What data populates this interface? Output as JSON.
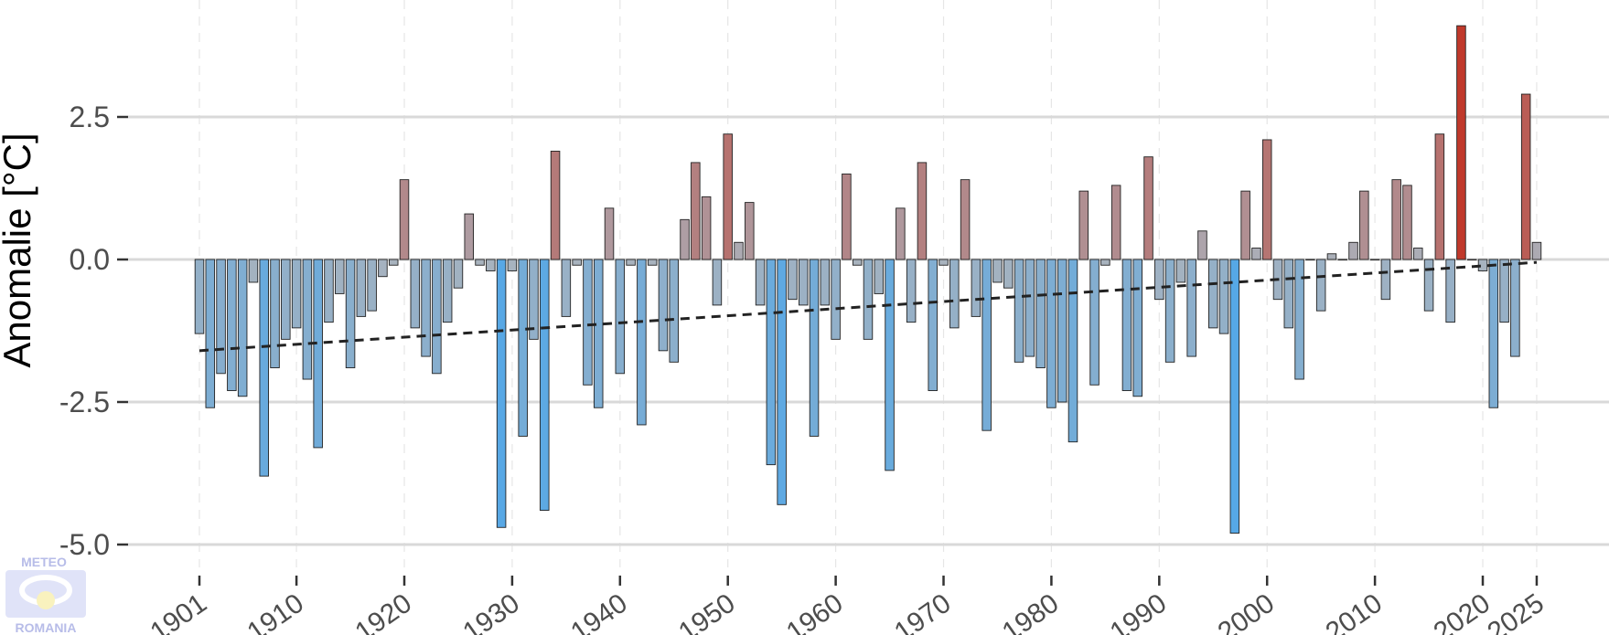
{
  "chart_data": {
    "type": "bar",
    "ylabel": "Anomalie [°C]",
    "xlabel": "",
    "ylim": [
      -5.4,
      4.5
    ],
    "xlim": [
      1900,
      2026.5
    ],
    "yticks": [
      2.5,
      0.0,
      -2.5,
      -5.0
    ],
    "ytick_labels": [
      "2.5",
      "0.0",
      "-2.5",
      "-5.0"
    ],
    "xticks": [
      1901,
      1910,
      1920,
      1930,
      1940,
      1950,
      1960,
      1970,
      1980,
      1990,
      2000,
      2010,
      2020,
      2025
    ],
    "xtick_labels": [
      "1901",
      "1910",
      "1920",
      "1930",
      "1940",
      "1950",
      "1960",
      "1970",
      "1980",
      "1990",
      "2000",
      "2010",
      "2020",
      "2025"
    ],
    "grid": true,
    "colors": {
      "cold": "#56a8e6",
      "neutral": "#aab3bd",
      "warm": "#c0392b",
      "trend": "#222222",
      "gridline": "#d9d9d9"
    },
    "trend": {
      "x": [
        1901,
        2025
      ],
      "y": [
        -1.6,
        -0.05
      ]
    },
    "years": [
      1901,
      1902,
      1903,
      1904,
      1905,
      1906,
      1907,
      1908,
      1909,
      1910,
      1911,
      1912,
      1913,
      1914,
      1915,
      1916,
      1917,
      1918,
      1919,
      1920,
      1921,
      1922,
      1923,
      1924,
      1925,
      1926,
      1927,
      1928,
      1929,
      1930,
      1931,
      1932,
      1933,
      1934,
      1935,
      1936,
      1937,
      1938,
      1939,
      1940,
      1941,
      1942,
      1943,
      1944,
      1945,
      1946,
      1947,
      1948,
      1949,
      1950,
      1951,
      1952,
      1953,
      1954,
      1955,
      1956,
      1957,
      1958,
      1959,
      1960,
      1961,
      1962,
      1963,
      1964,
      1965,
      1966,
      1967,
      1968,
      1969,
      1970,
      1971,
      1972,
      1973,
      1974,
      1975,
      1976,
      1977,
      1978,
      1979,
      1980,
      1981,
      1982,
      1983,
      1984,
      1985,
      1986,
      1987,
      1988,
      1989,
      1990,
      1991,
      1992,
      1993,
      1994,
      1995,
      1996,
      1997,
      1998,
      1999,
      2000,
      2001,
      2002,
      2003,
      2004,
      2005,
      2006,
      2007,
      2008,
      2009,
      2010,
      2011,
      2012,
      2013,
      2014,
      2015,
      2016,
      2017,
      2018,
      2019,
      2020,
      2021,
      2022,
      2023,
      2024,
      2025
    ],
    "values": [
      -1.3,
      -2.6,
      -2.0,
      -2.3,
      -2.4,
      -0.4,
      -3.8,
      -1.9,
      -1.4,
      -1.2,
      -2.1,
      -3.3,
      -1.1,
      -0.6,
      -1.9,
      -1.0,
      -0.9,
      -0.3,
      -0.1,
      1.4,
      -1.2,
      -1.7,
      -2.0,
      -1.1,
      -0.5,
      0.8,
      -0.1,
      -0.2,
      -4.7,
      -0.2,
      -3.1,
      -1.4,
      -4.4,
      1.9,
      -1.0,
      -0.1,
      -2.2,
      -2.6,
      0.9,
      -2.0,
      -0.1,
      -2.9,
      -0.1,
      -1.6,
      -1.8,
      0.7,
      1.7,
      1.1,
      -0.8,
      2.2,
      0.3,
      1.0,
      -0.8,
      -3.6,
      -4.3,
      -0.7,
      -0.8,
      -3.1,
      -0.8,
      -1.4,
      1.5,
      -0.1,
      -1.4,
      -0.6,
      -3.7,
      0.9,
      -1.1,
      1.7,
      -2.3,
      -0.1,
      -1.2,
      1.4,
      -1.0,
      -3.0,
      -0.4,
      -0.5,
      -1.8,
      -1.7,
      -1.9,
      -2.6,
      -2.5,
      -3.2,
      1.2,
      -2.2,
      -0.1,
      1.3,
      -2.3,
      -2.4,
      1.8,
      -0.7,
      -1.8,
      -0.4,
      -1.7,
      0.5,
      -1.2,
      -1.3,
      -4.8,
      1.2,
      0.2,
      2.1,
      -0.7,
      -1.2,
      -2.1,
      0.0,
      -0.9,
      0.1,
      0.0,
      0.3,
      1.2,
      0.0,
      -0.7,
      1.4,
      1.3,
      0.2,
      -0.9,
      2.2,
      -1.1,
      4.1,
      0.0,
      -0.2,
      -2.6,
      -1.1,
      -1.7,
      2.9,
      0.3
    ]
  },
  "logo": {
    "text_top": "METEO",
    "text_bottom": "ROMANIA"
  }
}
